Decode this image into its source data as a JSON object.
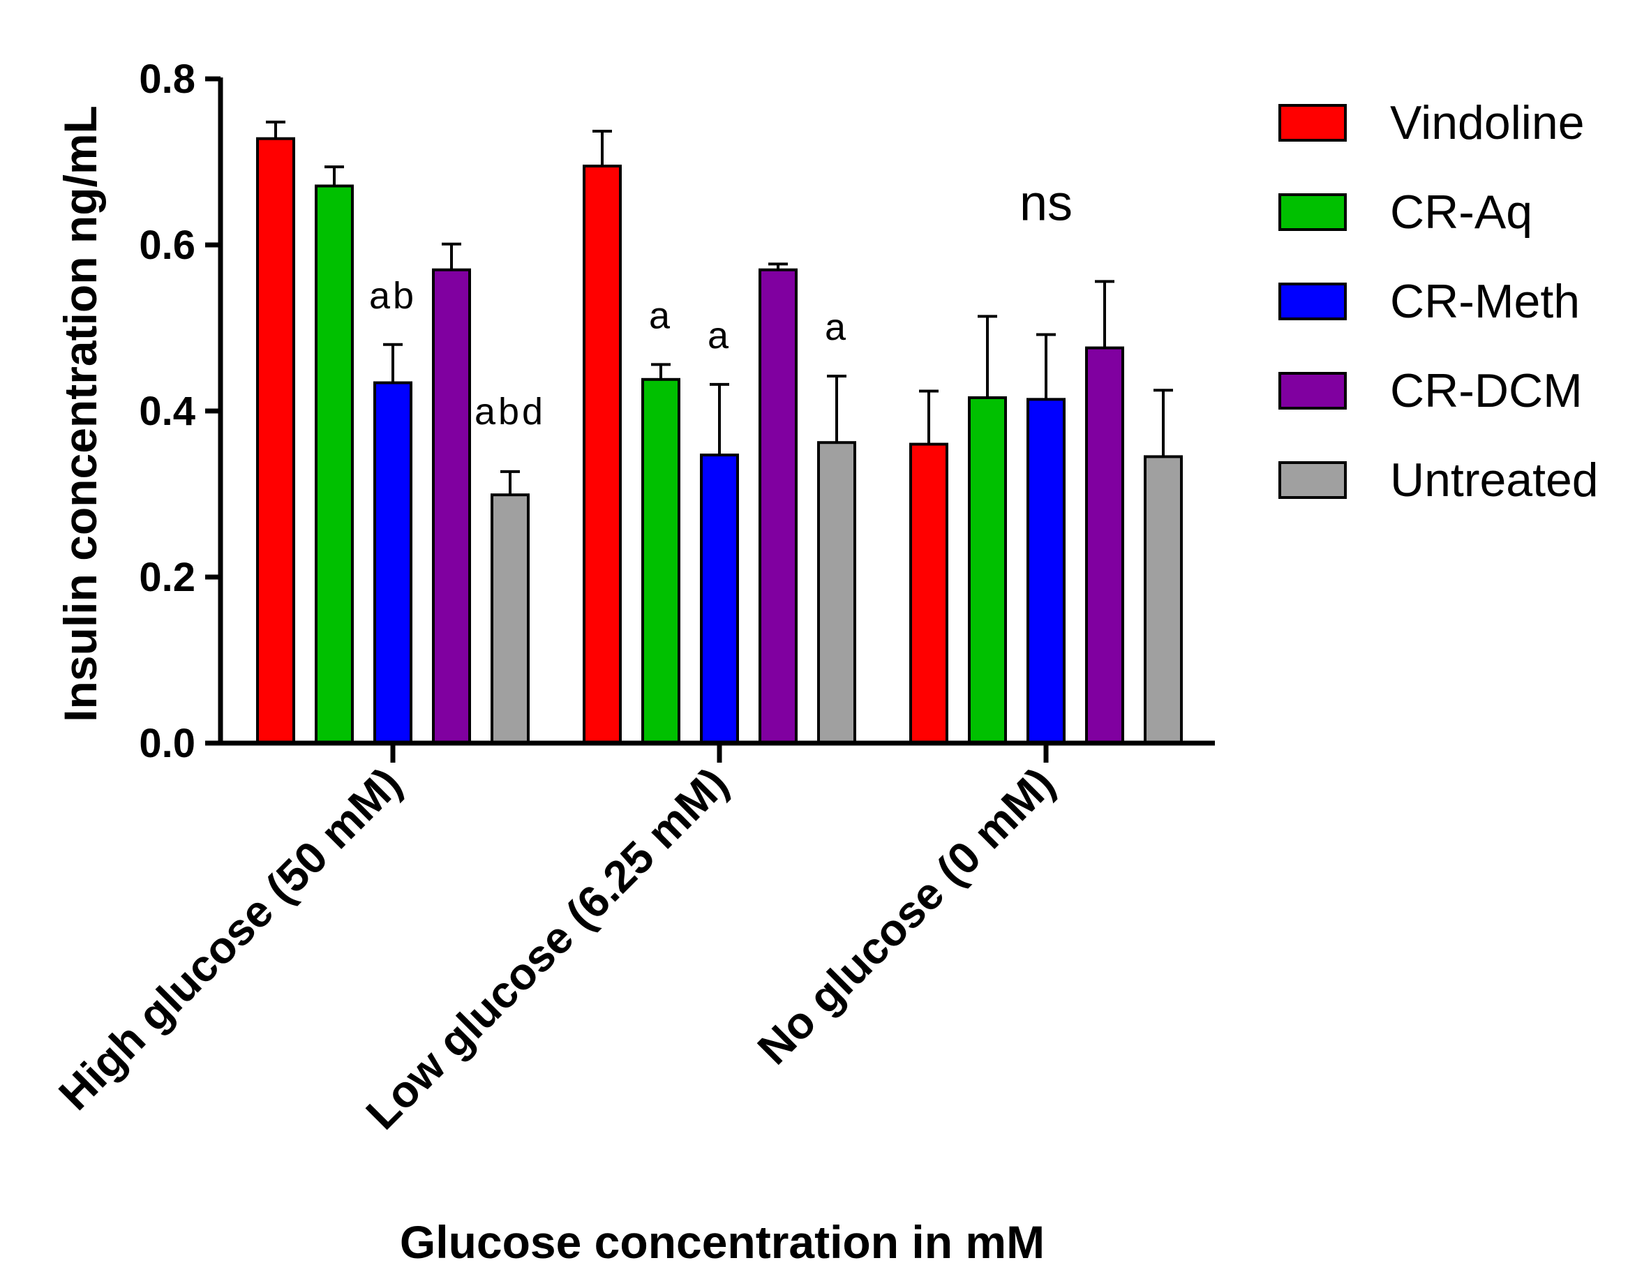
{
  "chart_data": {
    "type": "bar",
    "title": "",
    "xlabel": "Glucose concentration in mM",
    "ylabel": "Insulin concentration ng/mL",
    "ylim": [
      0,
      0.8
    ],
    "yticks": [
      "0.0",
      "0.2",
      "0.4",
      "0.6",
      "0.8"
    ],
    "categories": [
      "High glucose (50 mM)",
      "Low glucose (6.25 mM)",
      "No glucose (0 mM)"
    ],
    "series": [
      {
        "name": "Vindoline",
        "color": "#ff0000",
        "values": [
          0.728,
          0.695,
          0.36
        ],
        "errors": [
          0.02,
          0.042,
          0.064
        ]
      },
      {
        "name": "CR-Aq",
        "color": "#00c000",
        "values": [
          0.671,
          0.438,
          0.416
        ],
        "errors": [
          0.023,
          0.018,
          0.098
        ]
      },
      {
        "name": "CR-Meth",
        "color": "#0000ff",
        "values": [
          0.434,
          0.347,
          0.414
        ],
        "errors": [
          0.046,
          0.085,
          0.078
        ]
      },
      {
        "name": "CR-DCM",
        "color": "#8000a0",
        "values": [
          0.57,
          0.57,
          0.476
        ],
        "errors": [
          0.031,
          0.007,
          0.08
        ]
      },
      {
        "name": "Untreated",
        "color": "#a0a0a0",
        "values": [
          0.299,
          0.362,
          0.345
        ],
        "errors": [
          0.028,
          0.08,
          0.08
        ]
      }
    ],
    "annotations": [
      {
        "text": "ab",
        "category": 0,
        "series": 2
      },
      {
        "text": "abd",
        "category": 0,
        "series": 4
      },
      {
        "text": "a",
        "category": 1,
        "series": 1
      },
      {
        "text": "a",
        "category": 1,
        "series": 2
      },
      {
        "text": "a",
        "category": 1,
        "series": 4
      },
      {
        "text": "ns",
        "category": 2,
        "series": 2
      }
    ],
    "legend_position": "right"
  }
}
